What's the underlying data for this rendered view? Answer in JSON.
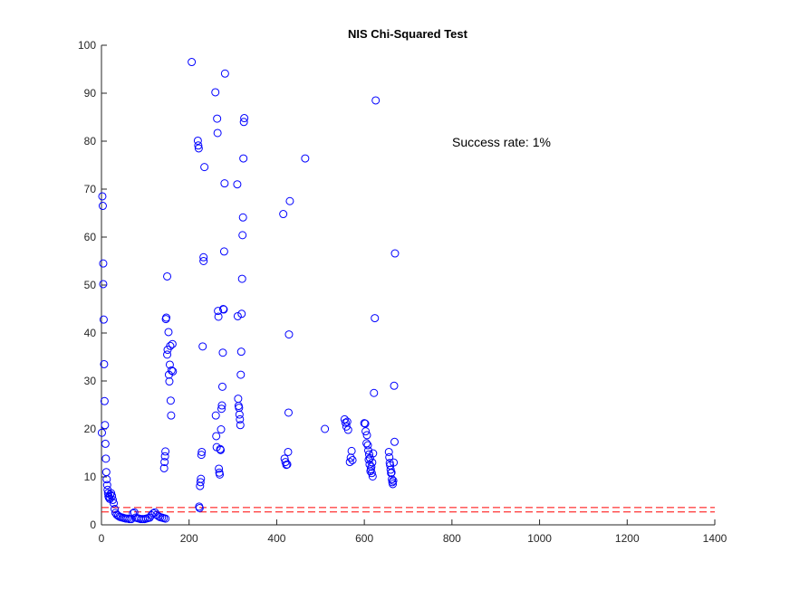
{
  "chart_data": {
    "type": "scatter",
    "title": "NIS Chi-Squared Test",
    "xlabel": "",
    "ylabel": "",
    "xlim": [
      0,
      1400
    ],
    "ylim": [
      0,
      100
    ],
    "x_ticks": [
      "0",
      "200",
      "400",
      "600",
      "800",
      "1000",
      "1200",
      "1400"
    ],
    "y_ticks": [
      "0",
      "10",
      "20",
      "30",
      "40",
      "50",
      "60",
      "70",
      "80",
      "90",
      "100"
    ],
    "grid": false,
    "annotation": "Success rate: 1%",
    "marker_color": "#0000ff",
    "threshold_color": "#ff0000",
    "thresholds": [
      {
        "x": [
          0,
          1400
        ],
        "y": 2.7
      },
      {
        "x": [
          0,
          1400
        ],
        "y": 3.6
      }
    ],
    "series": [
      {
        "marker": "circle",
        "points": [
          [
            1,
            19.2
          ],
          [
            2,
            68.5
          ],
          [
            3,
            66.5
          ],
          [
            4,
            54.5
          ],
          [
            4,
            50.2
          ],
          [
            5,
            42.8
          ],
          [
            6,
            33.5
          ],
          [
            7,
            25.8
          ],
          [
            8,
            20.8
          ],
          [
            9,
            16.9
          ],
          [
            10,
            13.8
          ],
          [
            11,
            11.0
          ],
          [
            12,
            9.5
          ],
          [
            13,
            8.3
          ],
          [
            14,
            7.3
          ],
          [
            15,
            6.6
          ],
          [
            16,
            6.0
          ],
          [
            17,
            5.7
          ],
          [
            19,
            5.4
          ],
          [
            20,
            6.3
          ],
          [
            22,
            6.6
          ],
          [
            24,
            6.0
          ],
          [
            26,
            5.2
          ],
          [
            28,
            4.5
          ],
          [
            30,
            3.3
          ],
          [
            32,
            2.5
          ],
          [
            35,
            2.1
          ],
          [
            38,
            1.9
          ],
          [
            41,
            1.7
          ],
          [
            44,
            1.6
          ],
          [
            48,
            1.5
          ],
          [
            52,
            1.4
          ],
          [
            56,
            1.3
          ],
          [
            60,
            1.3
          ],
          [
            64,
            1.2
          ],
          [
            68,
            1.2
          ],
          [
            72,
            2.4
          ],
          [
            75,
            2.6
          ],
          [
            78,
            1.5
          ],
          [
            82,
            1.4
          ],
          [
            86,
            1.3
          ],
          [
            90,
            1.2
          ],
          [
            94,
            1.2
          ],
          [
            98,
            1.2
          ],
          [
            102,
            1.3
          ],
          [
            106,
            1.4
          ],
          [
            110,
            1.5
          ],
          [
            114,
            2.0
          ],
          [
            118,
            2.4
          ],
          [
            122,
            2.6
          ],
          [
            126,
            2.1
          ],
          [
            130,
            1.8
          ],
          [
            134,
            1.6
          ],
          [
            138,
            1.5
          ],
          [
            142,
            1.4
          ],
          [
            146,
            1.3
          ],
          [
            143,
            11.8
          ],
          [
            144,
            13.1
          ],
          [
            145,
            14.3
          ],
          [
            146,
            15.3
          ],
          [
            147,
            42.9
          ],
          [
            148,
            43.2
          ],
          [
            150,
            51.8
          ],
          [
            150,
            35.5
          ],
          [
            151,
            36.5
          ],
          [
            153,
            40.2
          ],
          [
            154,
            31.3
          ],
          [
            155,
            29.9
          ],
          [
            156,
            33.4
          ],
          [
            157,
            37.3
          ],
          [
            158,
            25.9
          ],
          [
            159,
            22.8
          ],
          [
            160,
            32.2
          ],
          [
            162,
            37.7
          ],
          [
            163,
            32.0
          ],
          [
            206,
            96.5
          ],
          [
            220,
            80.1
          ],
          [
            221,
            79.1
          ],
          [
            222,
            78.5
          ],
          [
            223,
            3.8
          ],
          [
            224,
            3.5
          ],
          [
            225,
            8.1
          ],
          [
            226,
            8.9
          ],
          [
            227,
            9.6
          ],
          [
            228,
            14.6
          ],
          [
            229,
            15.2
          ],
          [
            231,
            37.2
          ],
          [
            233,
            55.0
          ],
          [
            233,
            55.8
          ],
          [
            235,
            74.6
          ],
          [
            260,
            90.2
          ],
          [
            261,
            22.8
          ],
          [
            262,
            18.5
          ],
          [
            263,
            16.2
          ],
          [
            264,
            84.7
          ],
          [
            265,
            81.7
          ],
          [
            266,
            44.6
          ],
          [
            267,
            43.4
          ],
          [
            268,
            11.7
          ],
          [
            269,
            10.9
          ],
          [
            270,
            10.5
          ],
          [
            271,
            15.8
          ],
          [
            272,
            15.6
          ],
          [
            273,
            19.9
          ],
          [
            274,
            24.2
          ],
          [
            275,
            24.9
          ],
          [
            276,
            28.8
          ],
          [
            277,
            35.9
          ],
          [
            278,
            45.0
          ],
          [
            279,
            44.9
          ],
          [
            280,
            57.0
          ],
          [
            281,
            71.2
          ],
          [
            282,
            94.1
          ],
          [
            310,
            71.0
          ],
          [
            311,
            43.5
          ],
          [
            312,
            26.3
          ],
          [
            313,
            24.8
          ],
          [
            314,
            24.4
          ],
          [
            315,
            23.0
          ],
          [
            316,
            22.0
          ],
          [
            317,
            20.8
          ],
          [
            318,
            31.3
          ],
          [
            319,
            36.1
          ],
          [
            320,
            44.0
          ],
          [
            321,
            51.3
          ],
          [
            322,
            60.4
          ],
          [
            323,
            64.1
          ],
          [
            324,
            76.4
          ],
          [
            325,
            84.0
          ],
          [
            326,
            84.8
          ],
          [
            415,
            64.8
          ],
          [
            418,
            13.8
          ],
          [
            420,
            13.1
          ],
          [
            422,
            12.5
          ],
          [
            424,
            12.6
          ],
          [
            426,
            15.2
          ],
          [
            427,
            23.4
          ],
          [
            428,
            39.7
          ],
          [
            430,
            67.5
          ],
          [
            465,
            76.4
          ],
          [
            510,
            20.0
          ],
          [
            555,
            22.0
          ],
          [
            557,
            21.3
          ],
          [
            559,
            20.5
          ],
          [
            561,
            21.5
          ],
          [
            563,
            19.8
          ],
          [
            567,
            13.1
          ],
          [
            569,
            14.0
          ],
          [
            571,
            15.4
          ],
          [
            573,
            13.5
          ],
          [
            600,
            21.2
          ],
          [
            602,
            21.1
          ],
          [
            603,
            19.5
          ],
          [
            605,
            17.0
          ],
          [
            606,
            18.7
          ],
          [
            608,
            16.6
          ],
          [
            609,
            15.5
          ],
          [
            610,
            13.6
          ],
          [
            611,
            14.7
          ],
          [
            612,
            12.6
          ],
          [
            613,
            13.9
          ],
          [
            614,
            11.2
          ],
          [
            615,
            11.6
          ],
          [
            616,
            12.1
          ],
          [
            617,
            10.8
          ],
          [
            618,
            13.0
          ],
          [
            619,
            10.1
          ],
          [
            620,
            14.9
          ],
          [
            622,
            27.5
          ],
          [
            624,
            43.1
          ],
          [
            626,
            88.5
          ],
          [
            656,
            15.2
          ],
          [
            657,
            14.1
          ],
          [
            658,
            12.9
          ],
          [
            659,
            12.4
          ],
          [
            660,
            11.5
          ],
          [
            661,
            10.8
          ],
          [
            662,
            10.9
          ],
          [
            663,
            9.5
          ],
          [
            664,
            8.9
          ],
          [
            665,
            8.5
          ],
          [
            666,
            9.2
          ],
          [
            667,
            13.0
          ],
          [
            668,
            29.0
          ],
          [
            669,
            17.3
          ],
          [
            670,
            56.6
          ]
        ]
      }
    ]
  }
}
